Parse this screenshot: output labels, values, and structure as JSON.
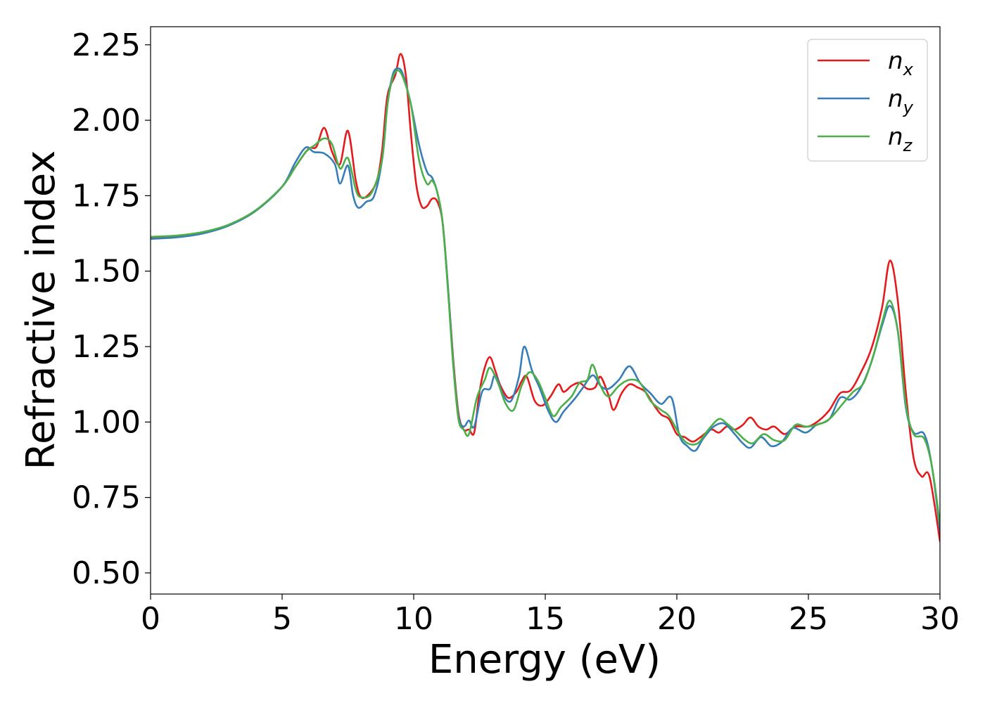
{
  "chart_data": {
    "type": "line",
    "title": "",
    "xlabel": "Energy (eV)",
    "ylabel": "Refractive index",
    "xlim": [
      0,
      30
    ],
    "ylim": [
      0.43,
      2.31
    ],
    "xticks": [
      0,
      5,
      10,
      15,
      20,
      25,
      30
    ],
    "xtick_labels": [
      "0",
      "5",
      "10",
      "15",
      "20",
      "25",
      "30"
    ],
    "yticks": [
      0.5,
      0.75,
      1.0,
      1.25,
      1.5,
      1.75,
      2.0,
      2.25
    ],
    "ytick_labels": [
      "0.50",
      "0.75",
      "1.00",
      "1.25",
      "1.50",
      "1.75",
      "2.00",
      "2.25"
    ],
    "grid": false,
    "legend": "top-right",
    "series": [
      {
        "name": "n_x",
        "label_base": "n",
        "label_sub": "x",
        "color": "#e41a1c",
        "points": [
          [
            0,
            1.612
          ],
          [
            1,
            1.616
          ],
          [
            2,
            1.628
          ],
          [
            3,
            1.653
          ],
          [
            4,
            1.7
          ],
          [
            5,
            1.78
          ],
          [
            5.5,
            1.845
          ],
          [
            6,
            1.905
          ],
          [
            6.3,
            1.912
          ],
          [
            6.6,
            1.975
          ],
          [
            6.9,
            1.895
          ],
          [
            7.2,
            1.855
          ],
          [
            7.5,
            1.965
          ],
          [
            7.8,
            1.8
          ],
          [
            8.0,
            1.745
          ],
          [
            8.3,
            1.755
          ],
          [
            8.6,
            1.8
          ],
          [
            8.8,
            1.9
          ],
          [
            9.0,
            2.08
          ],
          [
            9.3,
            2.15
          ],
          [
            9.5,
            2.22
          ],
          [
            9.7,
            2.15
          ],
          [
            9.9,
            1.95
          ],
          [
            10.1,
            1.785
          ],
          [
            10.3,
            1.715
          ],
          [
            10.5,
            1.715
          ],
          [
            10.7,
            1.74
          ],
          [
            10.9,
            1.73
          ],
          [
            11.1,
            1.66
          ],
          [
            11.3,
            1.45
          ],
          [
            11.5,
            1.21
          ],
          [
            11.7,
            1.03
          ],
          [
            11.9,
            0.975
          ],
          [
            12.1,
            0.975
          ],
          [
            12.3,
            0.965
          ],
          [
            12.5,
            1.1
          ],
          [
            12.7,
            1.18
          ],
          [
            12.9,
            1.215
          ],
          [
            13.1,
            1.17
          ],
          [
            13.3,
            1.12
          ],
          [
            13.6,
            1.08
          ],
          [
            13.9,
            1.1
          ],
          [
            14.1,
            1.135
          ],
          [
            14.3,
            1.15
          ],
          [
            14.6,
            1.07
          ],
          [
            14.9,
            1.055
          ],
          [
            15.2,
            1.085
          ],
          [
            15.5,
            1.125
          ],
          [
            15.7,
            1.1
          ],
          [
            16.0,
            1.12
          ],
          [
            16.3,
            1.13
          ],
          [
            16.6,
            1.11
          ],
          [
            16.9,
            1.115
          ],
          [
            17.1,
            1.15
          ],
          [
            17.4,
            1.09
          ],
          [
            17.6,
            1.04
          ],
          [
            17.9,
            1.095
          ],
          [
            18.2,
            1.125
          ],
          [
            18.5,
            1.115
          ],
          [
            18.8,
            1.1
          ],
          [
            19.1,
            1.06
          ],
          [
            19.4,
            1.025
          ],
          [
            19.7,
            1.01
          ],
          [
            20.0,
            0.96
          ],
          [
            20.3,
            0.95
          ],
          [
            20.6,
            0.935
          ],
          [
            20.9,
            0.95
          ],
          [
            21.3,
            0.975
          ],
          [
            21.6,
            0.965
          ],
          [
            21.9,
            0.985
          ],
          [
            22.2,
            0.975
          ],
          [
            22.5,
            0.99
          ],
          [
            22.8,
            1.015
          ],
          [
            23.1,
            0.985
          ],
          [
            23.4,
            0.975
          ],
          [
            23.7,
            0.985
          ],
          [
            24.1,
            0.96
          ],
          [
            24.5,
            0.985
          ],
          [
            25.0,
            0.985
          ],
          [
            25.4,
            1.005
          ],
          [
            25.8,
            1.04
          ],
          [
            26.2,
            1.095
          ],
          [
            26.6,
            1.105
          ],
          [
            27.0,
            1.165
          ],
          [
            27.4,
            1.245
          ],
          [
            27.8,
            1.38
          ],
          [
            28.1,
            1.535
          ],
          [
            28.4,
            1.4
          ],
          [
            28.7,
            1.1
          ],
          [
            29.0,
            0.88
          ],
          [
            29.3,
            0.82
          ],
          [
            29.6,
            0.82
          ],
          [
            30.0,
            0.605
          ]
        ]
      },
      {
        "name": "n_y",
        "label_base": "n",
        "label_sub": "y",
        "color": "#377eb8",
        "points": [
          [
            0,
            1.607
          ],
          [
            1,
            1.612
          ],
          [
            2,
            1.625
          ],
          [
            3,
            1.652
          ],
          [
            4,
            1.7
          ],
          [
            5,
            1.78
          ],
          [
            5.5,
            1.86
          ],
          [
            5.9,
            1.91
          ],
          [
            6.2,
            1.895
          ],
          [
            6.6,
            1.89
          ],
          [
            7.0,
            1.855
          ],
          [
            7.2,
            1.79
          ],
          [
            7.5,
            1.85
          ],
          [
            7.7,
            1.75
          ],
          [
            7.9,
            1.71
          ],
          [
            8.2,
            1.73
          ],
          [
            8.5,
            1.75
          ],
          [
            8.8,
            1.87
          ],
          [
            9.0,
            2.05
          ],
          [
            9.2,
            2.15
          ],
          [
            9.4,
            2.172
          ],
          [
            9.6,
            2.15
          ],
          [
            9.9,
            2.05
          ],
          [
            10.2,
            1.92
          ],
          [
            10.5,
            1.83
          ],
          [
            10.7,
            1.81
          ],
          [
            10.9,
            1.76
          ],
          [
            11.1,
            1.66
          ],
          [
            11.3,
            1.45
          ],
          [
            11.5,
            1.2
          ],
          [
            11.7,
            1.02
          ],
          [
            11.9,
            0.985
          ],
          [
            12.1,
            1.005
          ],
          [
            12.3,
            0.985
          ],
          [
            12.6,
            1.1
          ],
          [
            12.9,
            1.11
          ],
          [
            13.1,
            1.155
          ],
          [
            13.4,
            1.09
          ],
          [
            13.7,
            1.07
          ],
          [
            14.0,
            1.15
          ],
          [
            14.2,
            1.25
          ],
          [
            14.5,
            1.17
          ],
          [
            14.8,
            1.11
          ],
          [
            15.1,
            1.04
          ],
          [
            15.4,
            1.0
          ],
          [
            15.7,
            1.035
          ],
          [
            16.1,
            1.075
          ],
          [
            16.4,
            1.11
          ],
          [
            16.8,
            1.155
          ],
          [
            17.1,
            1.12
          ],
          [
            17.4,
            1.11
          ],
          [
            17.8,
            1.14
          ],
          [
            18.2,
            1.185
          ],
          [
            18.6,
            1.13
          ],
          [
            19.0,
            1.095
          ],
          [
            19.4,
            1.06
          ],
          [
            19.8,
            1.08
          ],
          [
            20.1,
            0.955
          ],
          [
            20.4,
            0.92
          ],
          [
            20.7,
            0.905
          ],
          [
            21.0,
            0.945
          ],
          [
            21.4,
            0.985
          ],
          [
            21.8,
            0.995
          ],
          [
            22.2,
            0.96
          ],
          [
            22.5,
            0.93
          ],
          [
            22.8,
            0.915
          ],
          [
            23.2,
            0.95
          ],
          [
            23.6,
            0.92
          ],
          [
            24.0,
            0.935
          ],
          [
            24.4,
            0.98
          ],
          [
            24.9,
            0.965
          ],
          [
            25.3,
            0.99
          ],
          [
            25.8,
            1.01
          ],
          [
            26.2,
            1.08
          ],
          [
            26.6,
            1.075
          ],
          [
            27.0,
            1.115
          ],
          [
            27.4,
            1.2
          ],
          [
            27.8,
            1.32
          ],
          [
            28.1,
            1.385
          ],
          [
            28.4,
            1.3
          ],
          [
            28.7,
            1.05
          ],
          [
            29.0,
            0.965
          ],
          [
            29.4,
            0.96
          ],
          [
            29.7,
            0.85
          ],
          [
            30.0,
            0.64
          ]
        ]
      },
      {
        "name": "n_z",
        "label_base": "n",
        "label_sub": "z",
        "color": "#4daf4a",
        "points": [
          [
            0,
            1.614
          ],
          [
            1,
            1.618
          ],
          [
            2,
            1.63
          ],
          [
            3,
            1.655
          ],
          [
            4,
            1.702
          ],
          [
            5,
            1.78
          ],
          [
            5.5,
            1.845
          ],
          [
            5.9,
            1.895
          ],
          [
            6.2,
            1.915
          ],
          [
            6.6,
            1.94
          ],
          [
            6.9,
            1.92
          ],
          [
            7.2,
            1.84
          ],
          [
            7.5,
            1.875
          ],
          [
            7.8,
            1.77
          ],
          [
            8.0,
            1.745
          ],
          [
            8.4,
            1.76
          ],
          [
            8.8,
            1.87
          ],
          [
            9.0,
            2.05
          ],
          [
            9.2,
            2.14
          ],
          [
            9.4,
            2.165
          ],
          [
            9.6,
            2.14
          ],
          [
            9.9,
            2.05
          ],
          [
            10.2,
            1.87
          ],
          [
            10.5,
            1.79
          ],
          [
            10.7,
            1.8
          ],
          [
            10.9,
            1.76
          ],
          [
            11.1,
            1.66
          ],
          [
            11.3,
            1.44
          ],
          [
            11.5,
            1.19
          ],
          [
            11.7,
            1.01
          ],
          [
            11.9,
            0.975
          ],
          [
            12.1,
            0.96
          ],
          [
            12.4,
            1.08
          ],
          [
            12.7,
            1.14
          ],
          [
            12.9,
            1.18
          ],
          [
            13.2,
            1.13
          ],
          [
            13.5,
            1.06
          ],
          [
            13.8,
            1.04
          ],
          [
            14.1,
            1.12
          ],
          [
            14.4,
            1.165
          ],
          [
            14.7,
            1.14
          ],
          [
            15.0,
            1.08
          ],
          [
            15.3,
            1.02
          ],
          [
            15.6,
            1.05
          ],
          [
            16.0,
            1.085
          ],
          [
            16.3,
            1.13
          ],
          [
            16.6,
            1.14
          ],
          [
            16.8,
            1.19
          ],
          [
            17.1,
            1.12
          ],
          [
            17.4,
            1.085
          ],
          [
            17.8,
            1.12
          ],
          [
            18.2,
            1.14
          ],
          [
            18.6,
            1.13
          ],
          [
            19.0,
            1.07
          ],
          [
            19.4,
            1.04
          ],
          [
            19.7,
            1.02
          ],
          [
            20.1,
            0.96
          ],
          [
            20.4,
            0.93
          ],
          [
            20.8,
            0.93
          ],
          [
            21.2,
            0.975
          ],
          [
            21.6,
            1.01
          ],
          [
            21.9,
            0.995
          ],
          [
            22.3,
            0.965
          ],
          [
            22.6,
            0.94
          ],
          [
            22.9,
            0.93
          ],
          [
            23.3,
            0.96
          ],
          [
            23.7,
            0.94
          ],
          [
            24.1,
            0.94
          ],
          [
            24.5,
            0.99
          ],
          [
            24.9,
            0.985
          ],
          [
            25.3,
            0.99
          ],
          [
            25.8,
            1.01
          ],
          [
            26.3,
            1.06
          ],
          [
            26.7,
            1.1
          ],
          [
            27.1,
            1.13
          ],
          [
            27.5,
            1.23
          ],
          [
            27.8,
            1.33
          ],
          [
            28.1,
            1.402
          ],
          [
            28.4,
            1.3
          ],
          [
            28.7,
            1.06
          ],
          [
            29.0,
            0.96
          ],
          [
            29.4,
            0.945
          ],
          [
            29.7,
            0.85
          ],
          [
            30.0,
            0.66
          ]
        ]
      }
    ]
  }
}
